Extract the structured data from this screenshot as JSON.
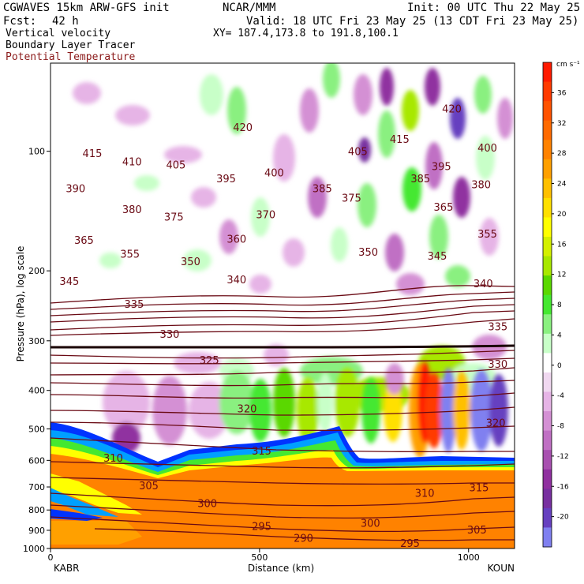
{
  "header": {
    "model": "CGWAVES 15km ARW-GFS init",
    "org": "NCAR/MMM",
    "init": "Init: 00 UTC Thu 22 May 25",
    "fcst_label": "Fcst:",
    "fcst_value": "42 h",
    "valid": "Valid: 18 UTC Fri 23 May 25 (13 CDT Fri 23 May 25)",
    "field1": "Vertical velocity",
    "field2": "Boundary Layer Tracer",
    "field3": "Potential Temperature",
    "xy": "XY= 187.4,173.8 to 191.8,100.1"
  },
  "colors": {
    "theta": "#6a0a14",
    "field3_text": "#8b1a1a"
  },
  "chart_data": {
    "type": "heatmap",
    "xlabel": "Distance (km)",
    "ylabel": "Pressure (hPa), log scale",
    "xlim": [
      0,
      1110
    ],
    "ylim": [
      1000,
      60
    ],
    "y_scale": "log",
    "x_ticks": [
      0,
      500,
      1000
    ],
    "y_ticks": [
      100,
      200,
      300,
      400,
      500,
      600,
      700,
      800,
      900,
      1000
    ],
    "x_endpoints": [
      "KABR",
      "KOUN"
    ],
    "colorbar": {
      "units": "cm s⁻¹",
      "labels": [
        36,
        32,
        28,
        24,
        20,
        16,
        12,
        8,
        4,
        0,
        -4,
        -8,
        -12,
        -16,
        -20
      ],
      "colors": [
        "#ff1a00",
        "#ff3a00",
        "#ff5200",
        "#ff6a00",
        "#ff8200",
        "#ffa000",
        "#ffc000",
        "#ffe000",
        "#ffff00",
        "#d4f000",
        "#a8e800",
        "#5ad800",
        "#44e830",
        "#8af080",
        "#c8ffc8",
        "#ffffff",
        "#f0d8f0",
        "#e6b4e6",
        "#d490d4",
        "#c070c4",
        "#a850b0",
        "#9030a0",
        "#7830a0",
        "#6640c0",
        "#8080f0"
      ]
    },
    "series": [
      {
        "name": "Potential Temperature",
        "labels": [
          {
            "v": 420,
            "x": 460,
            "p": 87
          },
          {
            "v": 420,
            "x": 960,
            "p": 78
          },
          {
            "v": 415,
            "x": 100,
            "p": 101
          },
          {
            "v": 415,
            "x": 835,
            "p": 93
          },
          {
            "v": 410,
            "x": 195,
            "p": 106
          },
          {
            "v": 405,
            "x": 300,
            "p": 108
          },
          {
            "v": 405,
            "x": 735,
            "p": 100
          },
          {
            "v": 400,
            "x": 535,
            "p": 113
          },
          {
            "v": 400,
            "x": 1045,
            "p": 98
          },
          {
            "v": 395,
            "x": 420,
            "p": 117
          },
          {
            "v": 395,
            "x": 935,
            "p": 109
          },
          {
            "v": 390,
            "x": 60,
            "p": 124
          },
          {
            "v": 385,
            "x": 650,
            "p": 124
          },
          {
            "v": 385,
            "x": 885,
            "p": 117
          },
          {
            "v": 380,
            "x": 195,
            "p": 140
          },
          {
            "v": 380,
            "x": 1030,
            "p": 121
          },
          {
            "v": 375,
            "x": 295,
            "p": 146
          },
          {
            "v": 375,
            "x": 720,
            "p": 131
          },
          {
            "v": 370,
            "x": 515,
            "p": 144
          },
          {
            "v": 365,
            "x": 80,
            "p": 167
          },
          {
            "v": 365,
            "x": 940,
            "p": 138
          },
          {
            "v": 360,
            "x": 445,
            "p": 166
          },
          {
            "v": 355,
            "x": 190,
            "p": 181
          },
          {
            "v": 355,
            "x": 1045,
            "p": 161
          },
          {
            "v": 350,
            "x": 335,
            "p": 189
          },
          {
            "v": 350,
            "x": 760,
            "p": 179
          },
          {
            "v": 345,
            "x": 45,
            "p": 212
          },
          {
            "v": 345,
            "x": 925,
            "p": 183
          },
          {
            "v": 340,
            "x": 445,
            "p": 210
          },
          {
            "v": 340,
            "x": 1035,
            "p": 215
          },
          {
            "v": 335,
            "x": 200,
            "p": 242
          },
          {
            "v": 335,
            "x": 1070,
            "p": 276
          },
          {
            "v": 330,
            "x": 285,
            "p": 288
          },
          {
            "v": 330,
            "x": 1070,
            "p": 343
          },
          {
            "v": 325,
            "x": 380,
            "p": 335
          },
          {
            "v": 320,
            "x": 470,
            "p": 444
          },
          {
            "v": 320,
            "x": 1065,
            "p": 482
          },
          {
            "v": 315,
            "x": 505,
            "p": 567
          },
          {
            "v": 315,
            "x": 1025,
            "p": 702
          },
          {
            "v": 310,
            "x": 150,
            "p": 591
          },
          {
            "v": 310,
            "x": 895,
            "p": 724
          },
          {
            "v": 305,
            "x": 235,
            "p": 694
          },
          {
            "v": 305,
            "x": 1020,
            "p": 896
          },
          {
            "v": 300,
            "x": 375,
            "p": 769
          },
          {
            "v": 300,
            "x": 765,
            "p": 862
          },
          {
            "v": 295,
            "x": 505,
            "p": 878
          },
          {
            "v": 295,
            "x": 860,
            "p": 968
          },
          {
            "v": 290,
            "x": 605,
            "p": 940
          }
        ]
      }
    ]
  }
}
